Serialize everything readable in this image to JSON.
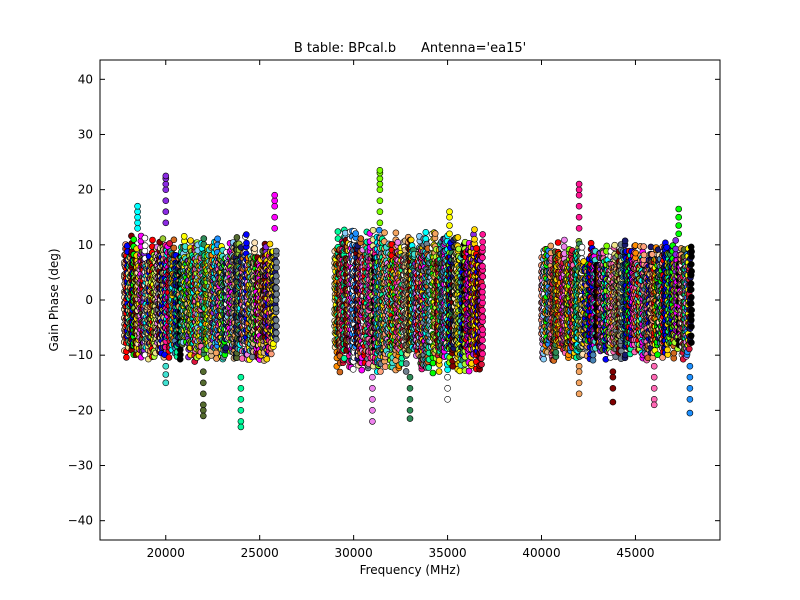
{
  "chart_data": {
    "type": "scatter",
    "title": "B table: BPcal.b      Antenna='ea15'",
    "xlabel": "Frequency (MHz)",
    "ylabel": "Gain Phase (deg)",
    "xlim": [
      16500,
      49500
    ],
    "ylim": [
      -43.5,
      43.5
    ],
    "xticks": [
      20000,
      25000,
      30000,
      35000,
      40000,
      45000
    ],
    "yticks": [
      40,
      30,
      20,
      10,
      0,
      -10,
      -20,
      -30,
      -40
    ],
    "xtick_labels": [
      "20000",
      "25000",
      "30000",
      "35000",
      "40000",
      "45000"
    ],
    "ytick_labels": [
      "40",
      "30",
      "20",
      "10",
      "0",
      "−10",
      "−20",
      "−30",
      "−40"
    ],
    "grid": false,
    "legend": "none",
    "bands": [
      {
        "x_range": [
          17800,
          25900
        ],
        "y_range": [
          -11,
          12
        ]
      },
      {
        "x_range": [
          29000,
          36900
        ],
        "y_range": [
          -13,
          13
        ]
      },
      {
        "x_range": [
          40000,
          48000
        ],
        "y_range": [
          -11,
          11
        ]
      }
    ],
    "outlier_columns": [
      {
        "x": 18500,
        "y": [
          13,
          14,
          15,
          16,
          17
        ]
      },
      {
        "x": 20000,
        "y": [
          14,
          16,
          18,
          20,
          21,
          22,
          22.5
        ]
      },
      {
        "x": 20000,
        "y": [
          -12,
          -13.5,
          -15
        ]
      },
      {
        "x": 22000,
        "y": [
          -13,
          -15,
          -17,
          -19,
          -20,
          -21
        ]
      },
      {
        "x": 24000,
        "y": [
          -14,
          -16,
          -18,
          -20,
          -22,
          -23
        ]
      },
      {
        "x": 25800,
        "y": [
          13,
          15,
          17,
          18,
          19
        ]
      },
      {
        "x": 31400,
        "y": [
          14,
          16,
          18,
          20,
          21,
          22,
          23,
          23.5
        ]
      },
      {
        "x": 31000,
        "y": [
          -14,
          -16,
          -18,
          -20,
          -22
        ]
      },
      {
        "x": 33000,
        "y": [
          -14,
          -16,
          -18,
          -20,
          -21.5
        ]
      },
      {
        "x": 35000,
        "y": [
          -14,
          -16,
          -18
        ]
      },
      {
        "x": 35100,
        "y": [
          12,
          13.5,
          15,
          16
        ]
      },
      {
        "x": 42000,
        "y": [
          13,
          15,
          17,
          19,
          20,
          21
        ]
      },
      {
        "x": 42000,
        "y": [
          -12,
          -13,
          -15,
          -17
        ]
      },
      {
        "x": 43800,
        "y": [
          -13,
          -14,
          -16,
          -18.5
        ]
      },
      {
        "x": 46000,
        "y": [
          -12,
          -14,
          -16,
          -18,
          -19
        ]
      },
      {
        "x": 47300,
        "y": [
          12,
          13.5,
          15,
          16.5
        ]
      },
      {
        "x": 47900,
        "y": [
          -12,
          -14,
          -16,
          -18,
          -20.5
        ]
      }
    ],
    "colors": [
      "#00ffff",
      "#ff00ff",
      "#ffff00",
      "#00ff00",
      "#ff0000",
      "#0000ff",
      "#ff8c00",
      "#8a2be2",
      "#7fff00",
      "#ff1493",
      "#1e90ff",
      "#adff2f",
      "#d2691e",
      "#ffd700",
      "#40e0d0",
      "#ee82ee",
      "#f4a460",
      "#9acd32",
      "#87cefa",
      "#f0e68c",
      "#000000",
      "#556b2f",
      "#2e8b57",
      "#800000",
      "#ffe4b5",
      "#deb887",
      "#708090",
      "#dc143c",
      "#00fa9a",
      "#ffffff",
      "#ff69b4",
      "#4682b4",
      "#ffa07a",
      "#191970"
    ]
  }
}
